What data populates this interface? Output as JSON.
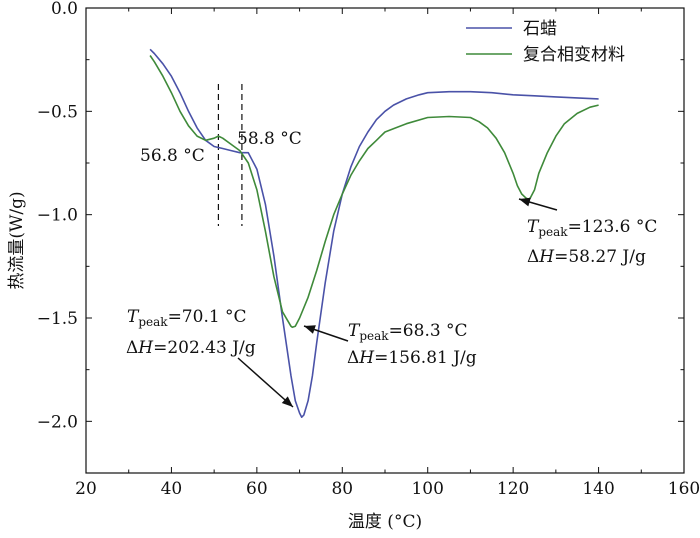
{
  "chart_data": {
    "type": "line",
    "xlabel": "温度 (°C)",
    "ylabel": "热流量(W/g)",
    "xlim": [
      20,
      160
    ],
    "ylim": [
      -2.25,
      0.0
    ],
    "x_ticks": [
      20,
      40,
      60,
      80,
      100,
      120,
      140,
      160
    ],
    "y_ticks": [
      0.0,
      -0.5,
      -1.0,
      -1.5,
      -2.0
    ],
    "x_tick_labels": [
      "20",
      "40",
      "60",
      "80",
      "100",
      "120",
      "140",
      "160"
    ],
    "y_tick_labels": [
      "0.0",
      "−0.5",
      "−1.0",
      "−1.5",
      "−2.0"
    ],
    "grid": false,
    "legend_position": "top-right",
    "series": [
      {
        "name": "石蜡",
        "color": "#4a52a8",
        "x": [
          35,
          36,
          38,
          40,
          42,
          44,
          46,
          48,
          50,
          52,
          54,
          56,
          57,
          58,
          60,
          62,
          64,
          66,
          68,
          69,
          70,
          70.5,
          71,
          72,
          73,
          74,
          76,
          78,
          80,
          82,
          84,
          86,
          88,
          90,
          92,
          95,
          98,
          100,
          105,
          110,
          115,
          120,
          125,
          130,
          135,
          140
        ],
        "y": [
          -0.2,
          -0.22,
          -0.27,
          -0.33,
          -0.41,
          -0.5,
          -0.58,
          -0.64,
          -0.67,
          -0.68,
          -0.69,
          -0.7,
          -0.7,
          -0.7,
          -0.78,
          -0.95,
          -1.2,
          -1.5,
          -1.78,
          -1.9,
          -1.96,
          -1.98,
          -1.97,
          -1.9,
          -1.78,
          -1.62,
          -1.33,
          -1.08,
          -0.9,
          -0.77,
          -0.67,
          -0.6,
          -0.54,
          -0.5,
          -0.47,
          -0.44,
          -0.42,
          -0.41,
          -0.405,
          -0.405,
          -0.41,
          -0.42,
          -0.425,
          -0.43,
          -0.435,
          -0.44
        ]
      },
      {
        "name": "复合相变材料",
        "color": "#3f8a3a",
        "x": [
          35,
          36,
          38,
          40,
          42,
          44,
          46,
          48,
          50,
          51,
          52,
          54,
          56,
          58,
          60,
          62,
          64,
          66,
          68,
          68.3,
          69,
          70,
          72,
          74,
          76,
          78,
          80,
          82,
          84,
          86,
          88,
          90,
          95,
          100,
          105,
          110,
          112,
          114,
          116,
          118,
          120,
          121,
          122,
          123,
          123.6,
          124,
          125,
          126,
          128,
          130,
          132,
          135,
          138,
          140
        ],
        "y": [
          -0.23,
          -0.26,
          -0.33,
          -0.41,
          -0.5,
          -0.57,
          -0.62,
          -0.64,
          -0.63,
          -0.62,
          -0.63,
          -0.66,
          -0.69,
          -0.75,
          -0.88,
          -1.08,
          -1.3,
          -1.47,
          -1.54,
          -1.545,
          -1.54,
          -1.5,
          -1.4,
          -1.27,
          -1.13,
          -1.0,
          -0.9,
          -0.81,
          -0.74,
          -0.68,
          -0.64,
          -0.6,
          -0.56,
          -0.53,
          -0.525,
          -0.53,
          -0.55,
          -0.58,
          -0.63,
          -0.7,
          -0.8,
          -0.86,
          -0.9,
          -0.92,
          -0.925,
          -0.92,
          -0.88,
          -0.8,
          -0.7,
          -0.62,
          -0.56,
          -0.51,
          -0.48,
          -0.47
        ]
      }
    ],
    "annotations": {
      "onset1": "56.8 °C",
      "onset2": "58.8 °C",
      "paraffin_T": "=70.1 °C",
      "paraffin_H": "=202.43 J/g",
      "pcm_T": "=68.3 °C",
      "pcm_H": "=156.81 J/g",
      "pcm2_T": "=123.6 °C",
      "pcm2_H": "=58.27 J/g",
      "T_symbol": "T",
      "T_sub": "peak",
      "H_prefix": "Δ",
      "H_symbol": "H"
    },
    "dashed_lines_x": [
      51,
      56.5
    ]
  }
}
